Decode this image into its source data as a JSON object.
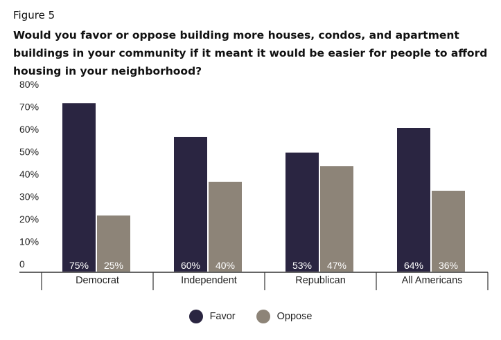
{
  "figure_label": "Figure 5",
  "colors": {
    "favor": "#2a2541",
    "oppose": "#8d8478"
  },
  "chart_data": {
    "type": "bar",
    "title": "Would you favor or oppose building more houses, condos, and apartment buildings in your community if it meant it would be easier for people to afford housing in your neighborhood?",
    "categories": [
      "Democrat",
      "Independent",
      "Republican",
      "All Americans"
    ],
    "series": [
      {
        "name": "Favor",
        "values": [
          75,
          60,
          53,
          64
        ],
        "labels": [
          "75%",
          "60%",
          "53%",
          "64%"
        ]
      },
      {
        "name": "Oppose",
        "values": [
          25,
          40,
          47,
          36
        ],
        "labels": [
          "25%",
          "40%",
          "47%",
          "36%"
        ]
      }
    ],
    "yticks": [
      "0",
      "10%",
      "20%",
      "30%",
      "40%",
      "50%",
      "60%",
      "70%",
      "80%"
    ],
    "ylim": [
      0,
      80
    ],
    "xlabel": "",
    "ylabel": "",
    "legend": "bottom-center"
  }
}
